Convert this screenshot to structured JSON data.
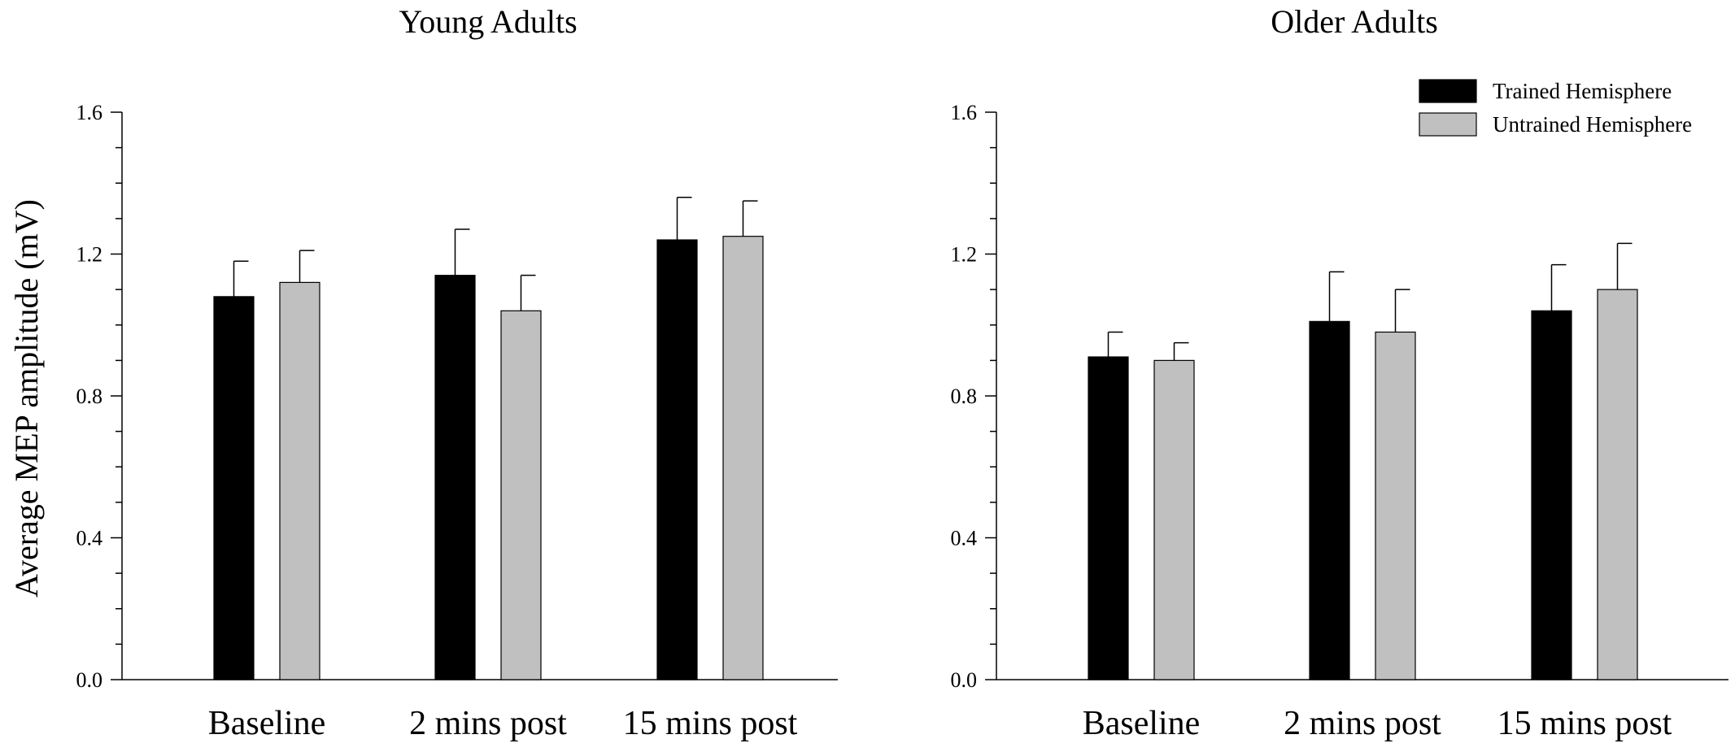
{
  "chart_data": {
    "type": "bar",
    "ylabel": "Average MEP amplitude (mV)",
    "ylim": [
      0,
      1.6
    ],
    "yticks": [
      "0.0",
      "0.4",
      "0.8",
      "1.2",
      "1.6"
    ],
    "legend": {
      "position": "top-right",
      "entries": [
        {
          "name": "Trained Hemisphere",
          "color": "#000000"
        },
        {
          "name": "Untrained Hemisphere",
          "color": "#c0c0c0"
        }
      ]
    },
    "categories": [
      "Baseline",
      "2 mins post",
      "15 mins post"
    ],
    "panels": [
      {
        "title": "Young Adults",
        "series": [
          {
            "name": "Trained Hemisphere",
            "color": "#000000",
            "values": [
              1.08,
              1.14,
              1.24
            ],
            "errors": [
              0.1,
              0.13,
              0.12
            ]
          },
          {
            "name": "Untrained Hemisphere",
            "color": "#c0c0c0",
            "values": [
              1.12,
              1.04,
              1.25
            ],
            "errors": [
              0.09,
              0.1,
              0.1
            ]
          }
        ]
      },
      {
        "title": "Older Adults",
        "series": [
          {
            "name": "Trained Hemisphere",
            "color": "#000000",
            "values": [
              0.91,
              1.01,
              1.04
            ],
            "errors": [
              0.07,
              0.14,
              0.13
            ]
          },
          {
            "name": "Untrained Hemisphere",
            "color": "#c0c0c0",
            "values": [
              0.9,
              0.98,
              1.1
            ],
            "errors": [
              0.05,
              0.12,
              0.13
            ]
          }
        ]
      }
    ]
  }
}
